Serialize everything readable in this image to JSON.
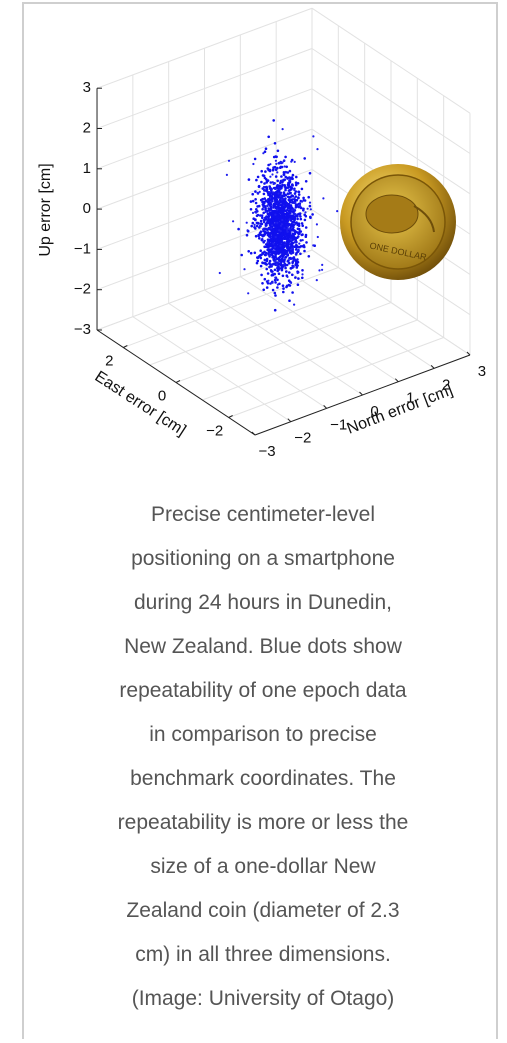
{
  "figure": {
    "up_axis": {
      "label": "Up error [cm]",
      "ticks": [
        "3",
        "2",
        "1",
        "0",
        "−1",
        "−2",
        "−3"
      ]
    },
    "east_axis": {
      "label": "East error [cm]",
      "ticks": [
        "2",
        "0",
        "−2"
      ]
    },
    "north_axis": {
      "label": "North error [cm]",
      "ticks": [
        "−3",
        "−2",
        "−1",
        "0",
        "1",
        "2",
        "3"
      ]
    },
    "coin_text": "ONE DOLLAR"
  },
  "caption": {
    "lines": [
      "Precise centimeter-level",
      "positioning on a smartphone",
      "during 24 hours in Dunedin,",
      "New Zealand. Blue dots show",
      "repeatability of one epoch data",
      "in comparison to precise",
      "benchmark coordinates. The",
      "repeatability is more or less the",
      "size of a one-dollar New",
      "Zealand coin (diameter of 2.3",
      "cm) in all three dimensions.",
      "(Image: University of Otago)"
    ]
  }
}
